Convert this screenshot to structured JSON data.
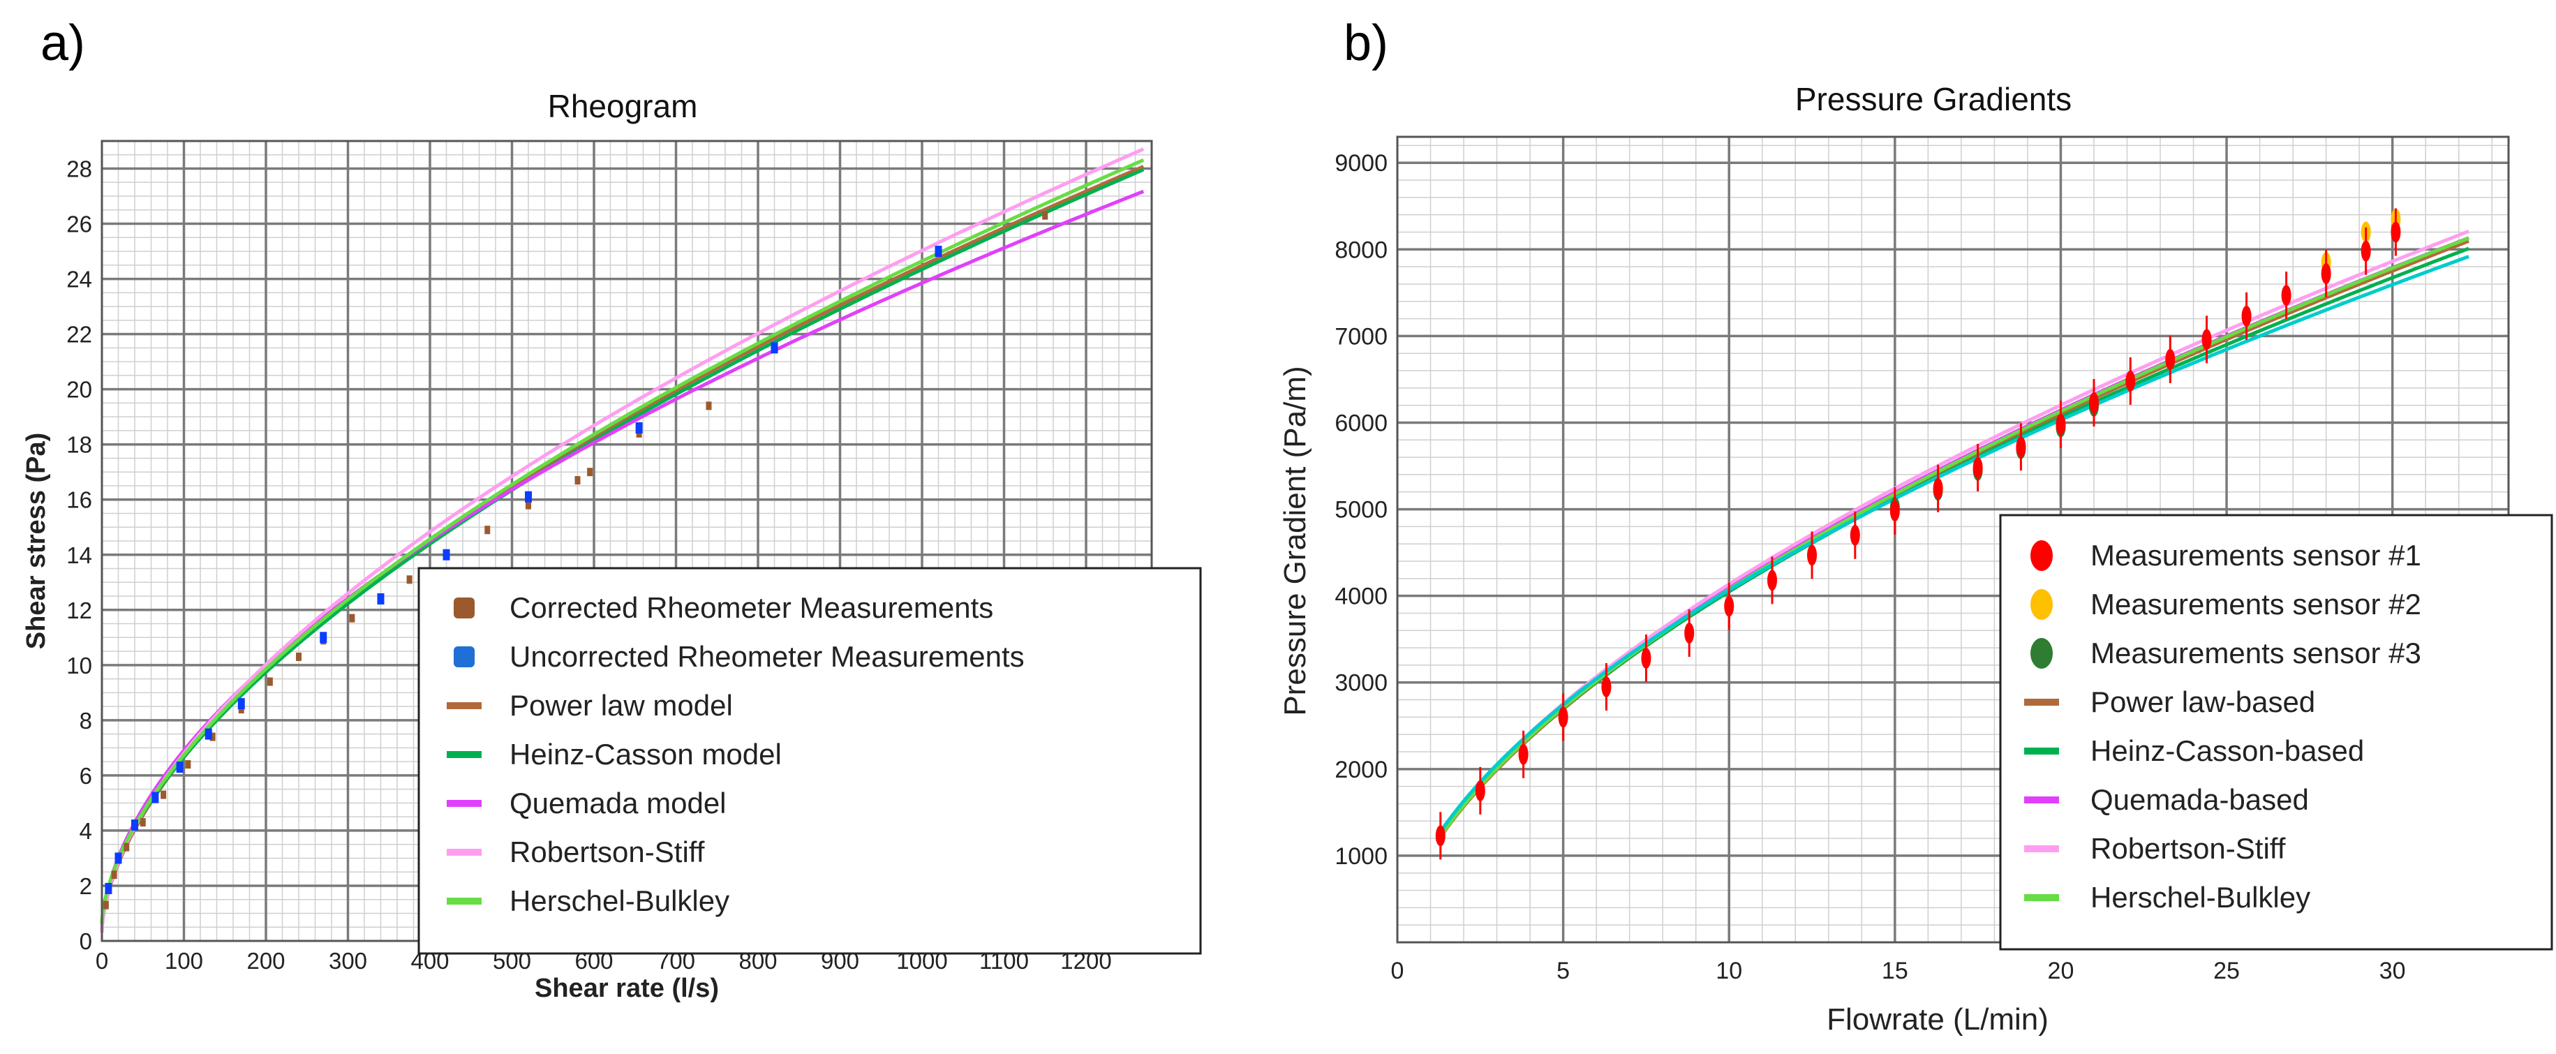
{
  "panels": {
    "a_label": "a)",
    "b_label": "b)"
  },
  "colors": {
    "power": "#b06a3a",
    "heinz": "#00b050",
    "quemada": "#e040fb",
    "robertson": "#ff9ef0",
    "herschel": "#66dd44",
    "corrected": "#9b5a2e",
    "uncorrected": "#0a3dff",
    "sensor1": "#ff0000",
    "sensor2": "#ffc000",
    "sensor3": "#2e7d32",
    "cyan": "#00cccc"
  },
  "chart_data": [
    {
      "type": "line",
      "title": "Rheogram",
      "xlabel": "Shear rate (l/s)",
      "ylabel": "Shear stress (Pa)",
      "xlim": [
        0,
        1280
      ],
      "ylim": [
        0,
        29
      ],
      "xticks": [
        0,
        100,
        200,
        300,
        400,
        500,
        600,
        700,
        800,
        900,
        1000,
        1100,
        1200
      ],
      "yticks": [
        0,
        2,
        4,
        6,
        8,
        10,
        12,
        14,
        16,
        18,
        20,
        22,
        24,
        26,
        28
      ],
      "legend_position": "bottom-right",
      "legend": [
        {
          "label": "Corrected Rheometer Measurements",
          "kind": "marker",
          "color": "#9b5a2e"
        },
        {
          "label": "Uncorrected Rheometer Measurements",
          "kind": "marker",
          "color": "#1f6fd6"
        },
        {
          "label": "Power law model",
          "kind": "line",
          "color": "#b06a3a"
        },
        {
          "label": "Heinz-Casson model",
          "kind": "line",
          "color": "#00b050"
        },
        {
          "label": "Quemada model",
          "kind": "line",
          "color": "#e040fb"
        },
        {
          "label": "Robertson-Stiff",
          "kind": "line",
          "color": "#ff9ef0"
        },
        {
          "label": "Herschel-Bulkley",
          "kind": "line",
          "color": "#66dd44"
        }
      ],
      "series": [
        {
          "name": "Power law model",
          "model": {
            "a": 0.3,
            "k": 0.44,
            "n": 0.58
          },
          "color": "#b06a3a"
        },
        {
          "name": "Heinz-Casson model",
          "model": {
            "a": 0.6,
            "k": 0.395,
            "n": 0.593
          },
          "color": "#00b050"
        },
        {
          "name": "Quemada model",
          "model": {
            "a": 0.3,
            "k": 0.52,
            "n": 0.552
          },
          "color": "#e040fb"
        },
        {
          "name": "Robertson-Stiff",
          "model": {
            "a": 0.3,
            "k": 0.45,
            "n": 0.58
          },
          "color": "#ff9ef0"
        },
        {
          "name": "Herschel-Bulkley",
          "model": {
            "a": 0.6,
            "k": 0.4,
            "n": 0.593
          },
          "color": "#66dd44"
        }
      ],
      "corrected_points": {
        "x": [
          5,
          15,
          30,
          50,
          75,
          105,
          135,
          170,
          205,
          240,
          270,
          305,
          340,
          375,
          420,
          470,
          520,
          580,
          595,
          655,
          740,
          1150
        ],
        "y": [
          1.3,
          2.4,
          3.4,
          4.3,
          5.3,
          6.4,
          7.4,
          8.4,
          9.4,
          10.3,
          10.9,
          11.7,
          12.4,
          13.1,
          14.0,
          14.9,
          15.8,
          16.7,
          17.0,
          18.4,
          19.4,
          26.3
        ]
      },
      "uncorrected_points": {
        "x": [
          8,
          20,
          40,
          65,
          95,
          130,
          170,
          270,
          340,
          420,
          520,
          655,
          820,
          1020
        ],
        "y": [
          1.9,
          3.0,
          4.2,
          5.2,
          6.3,
          7.5,
          8.6,
          11.0,
          12.4,
          14.0,
          16.1,
          18.6,
          21.5,
          25.0
        ]
      }
    },
    {
      "type": "line",
      "title": "Pressure Gradients",
      "xlabel": "Flowrate (L/min)",
      "ylabel": "Pressure Gradient (Pa/m)",
      "xlim": [
        0,
        33.5
      ],
      "ylim": [
        0,
        9300
      ],
      "xticks": [
        0,
        5,
        10,
        15,
        20,
        25,
        30
      ],
      "yticks": [
        1000,
        2000,
        3000,
        4000,
        5000,
        6000,
        7000,
        8000,
        9000
      ],
      "legend_position": "bottom-right",
      "legend": [
        {
          "label": "Measurements sensor #1",
          "kind": "marker",
          "color": "#ff0000"
        },
        {
          "label": "Measurements sensor #2",
          "kind": "marker",
          "color": "#ffc000"
        },
        {
          "label": "Measurements sensor #3",
          "kind": "marker",
          "color": "#2e7d32"
        },
        {
          "label": "Power law-based",
          "kind": "line",
          "color": "#b06a3a"
        },
        {
          "label": "Heinz-Casson-based",
          "kind": "line",
          "color": "#00b050"
        },
        {
          "label": "Quemada-based",
          "kind": "line",
          "color": "#e040fb"
        },
        {
          "label": "Robertson-Stiff",
          "kind": "line",
          "color": "#ff9ef0"
        },
        {
          "label": "Herschel-Bulkley",
          "kind": "line",
          "color": "#66dd44"
        }
      ],
      "x_range": [
        1.2,
        32.3
      ],
      "series": [
        {
          "name": "Power law-based",
          "model": {
            "k": 1042,
            "n": 0.59
          },
          "color": "#b06a3a"
        },
        {
          "name": "Heinz-Casson-based",
          "model": {
            "k": 1060,
            "n": 0.582
          },
          "color": "#00b050"
        },
        {
          "name": "Quemada-based",
          "model": {
            "k": 1065,
            "n": 0.585
          },
          "color": "#e040fb"
        },
        {
          "name": "Robertson-Stiff",
          "model": {
            "k": 1075,
            "n": 0.585
          },
          "color": "#ff9ef0"
        },
        {
          "name": "Herschel-Bulkley",
          "model": {
            "k": 1050,
            "n": 0.589
          },
          "color": "#66dd44"
        },
        {
          "name": "",
          "model": {
            "k": 1100,
            "n": 0.568
          },
          "color": "#00cccc"
        }
      ],
      "sensor1": {
        "x": [
          1.3,
          2.5,
          3.8,
          5.0,
          6.3,
          7.5,
          8.8,
          10.0,
          11.3,
          12.5,
          13.8,
          15.0,
          16.3,
          17.5,
          18.8,
          20.0,
          21.0,
          22.1,
          23.3,
          24.4,
          25.6,
          26.8,
          28.0,
          29.2,
          30.1
        ],
        "y": [
          1230,
          1750,
          2170,
          2600,
          2950,
          3280,
          3570,
          3880,
          4180,
          4470,
          4700,
          4980,
          5240,
          5480,
          5720,
          5980,
          6230,
          6480,
          6730,
          6960,
          7230,
          7470,
          7720,
          7980,
          8200
        ]
      },
      "sensor2": {
        "x": [
          28.0,
          29.2,
          30.1
        ],
        "y": [
          7850,
          8200,
          8350
        ]
      },
      "sensor3": {
        "x": [
          15.0,
          16.3,
          17.5,
          18.8,
          20.0,
          21.0
        ],
        "y": [
          5020,
          5220,
          5450,
          5700,
          5950,
          6190
        ]
      }
    }
  ]
}
